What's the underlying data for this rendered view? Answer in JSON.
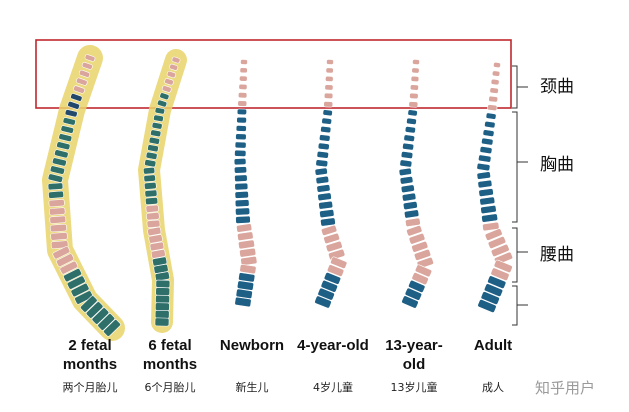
{
  "curve_labels": [
    "颈曲",
    "胸曲",
    "腰曲"
  ],
  "stages": [
    {
      "name": "2 fetal months",
      "chinese": "两个月胎儿"
    },
    {
      "name": "6 fetal months",
      "chinese": "6个月胎儿"
    },
    {
      "name": "Newborn",
      "chinese": "新生儿"
    },
    {
      "name": "4-year-old",
      "chinese": "4岁儿童"
    },
    {
      "name": "13-year-old",
      "chinese": "13岁儿童"
    },
    {
      "name": "Adult",
      "chinese": "成人"
    }
  ],
  "watermark": "知乎用户"
}
